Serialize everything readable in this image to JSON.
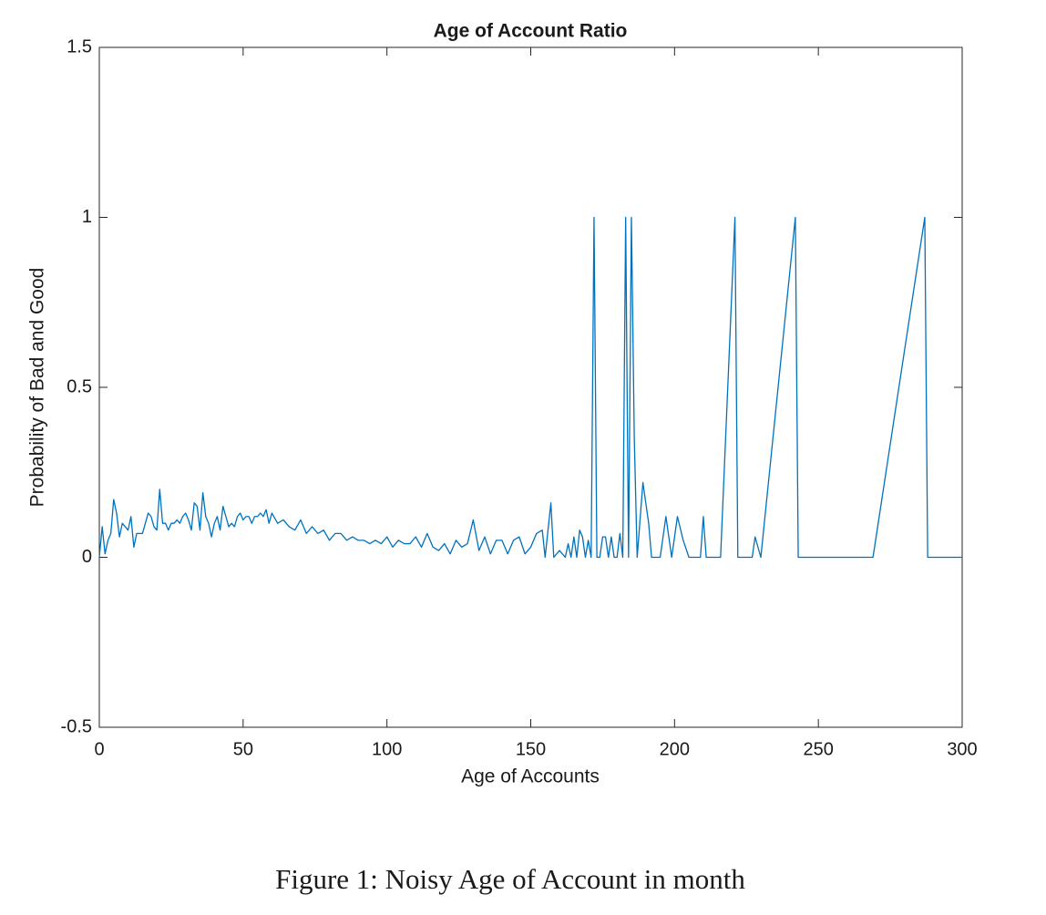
{
  "chart_data": {
    "type": "line",
    "title": "Age of Account Ratio",
    "x_label": "Age of Accounts",
    "y_label": "Probability of Bad and Good",
    "xlim": [
      0,
      300
    ],
    "ylim": [
      -0.5,
      1.5
    ],
    "xticks": [
      0,
      50,
      100,
      150,
      200,
      250,
      300
    ],
    "yticks": [
      -0.5,
      0,
      0.5,
      1,
      1.5
    ],
    "series": [
      {
        "color": "#0072bd",
        "x": [
          0,
          1,
          2,
          3,
          4,
          5,
          6,
          7,
          8,
          9,
          10,
          11,
          12,
          13,
          14,
          15,
          16,
          17,
          18,
          19,
          20,
          21,
          22,
          23,
          24,
          25,
          26,
          27,
          28,
          29,
          30,
          31,
          32,
          33,
          34,
          35,
          36,
          37,
          38,
          39,
          40,
          41,
          42,
          43,
          44,
          45,
          46,
          47,
          48,
          49,
          50,
          51,
          52,
          53,
          54,
          55,
          56,
          57,
          58,
          59,
          60,
          62,
          64,
          66,
          68,
          70,
          72,
          74,
          76,
          78,
          80,
          82,
          84,
          86,
          88,
          90,
          92,
          94,
          96,
          98,
          100,
          102,
          104,
          106,
          108,
          110,
          112,
          114,
          116,
          118,
          120,
          122,
          124,
          126,
          128,
          130,
          132,
          134,
          136,
          138,
          140,
          142,
          144,
          146,
          148,
          150,
          152,
          154,
          155,
          157,
          158,
          160,
          162,
          163,
          164,
          165,
          166,
          167,
          168,
          169,
          170,
          171,
          172,
          173,
          174,
          175,
          176,
          177,
          178,
          179,
          180,
          181,
          182,
          183,
          184,
          185,
          186,
          187,
          189,
          191,
          192,
          195,
          197,
          199,
          201,
          203,
          205,
          209,
          210,
          211,
          216,
          221,
          222,
          227,
          228,
          230,
          242,
          243,
          269,
          287,
          288,
          300
        ],
        "values": [
          0,
          0.09,
          0.01,
          0.05,
          0.07,
          0.17,
          0.13,
          0.06,
          0.1,
          0.09,
          0.08,
          0.12,
          0.03,
          0.07,
          0.07,
          0.07,
          0.1,
          0.13,
          0.12,
          0.09,
          0.08,
          0.2,
          0.1,
          0.1,
          0.08,
          0.1,
          0.1,
          0.11,
          0.1,
          0.12,
          0.13,
          0.11,
          0.08,
          0.16,
          0.15,
          0.08,
          0.19,
          0.12,
          0.1,
          0.06,
          0.1,
          0.12,
          0.08,
          0.15,
          0.12,
          0.09,
          0.1,
          0.09,
          0.12,
          0.13,
          0.11,
          0.12,
          0.12,
          0.1,
          0.12,
          0.12,
          0.13,
          0.12,
          0.14,
          0.1,
          0.13,
          0.1,
          0.11,
          0.09,
          0.08,
          0.11,
          0.07,
          0.09,
          0.07,
          0.08,
          0.05,
          0.07,
          0.07,
          0.05,
          0.06,
          0.05,
          0.05,
          0.04,
          0.05,
          0.04,
          0.06,
          0.03,
          0.05,
          0.04,
          0.04,
          0.06,
          0.03,
          0.07,
          0.03,
          0.02,
          0.04,
          0.01,
          0.05,
          0.03,
          0.04,
          0.11,
          0.02,
          0.06,
          0.01,
          0.05,
          0.05,
          0.01,
          0.05,
          0.06,
          0.01,
          0.03,
          0.07,
          0.08,
          0,
          0.16,
          0,
          0.02,
          0,
          0.04,
          0,
          0.06,
          0,
          0.08,
          0.06,
          0,
          0.05,
          0,
          1,
          0,
          0,
          0.06,
          0.06,
          0,
          0.06,
          0,
          0,
          0.07,
          0,
          1,
          0,
          1,
          0.35,
          0,
          0.22,
          0.1,
          0,
          0,
          0.12,
          0,
          0.12,
          0.05,
          0,
          0,
          0.12,
          0,
          0,
          1,
          0,
          0,
          0.06,
          0,
          1,
          0,
          0,
          1,
          0,
          0
        ]
      }
    ]
  },
  "caption": "Figure 1: Noisy Age of Account in month"
}
